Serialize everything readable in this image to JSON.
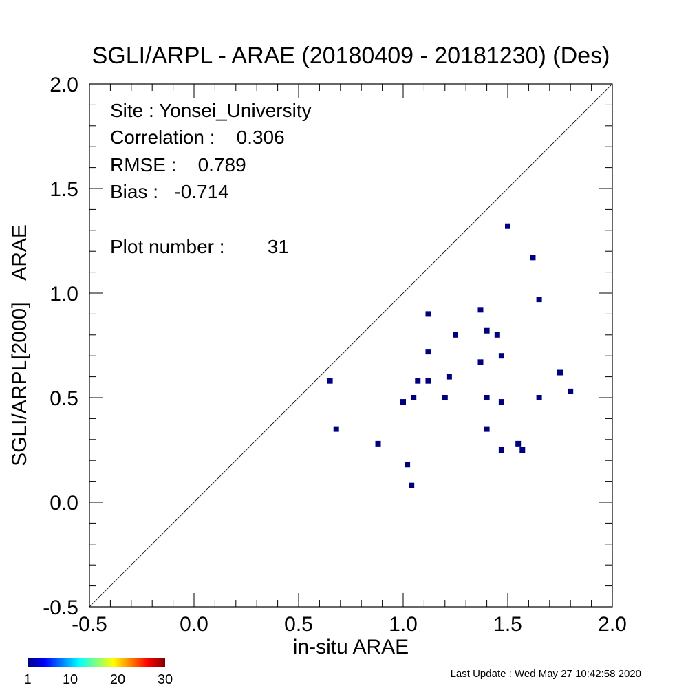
{
  "chart_data": {
    "type": "scatter",
    "title": "SGLI/ARPL - ARAE (20180409 - 20181230) (Des)",
    "xlabel": "in-situ ARAE",
    "ylabel": "SGLI/ARPL[2000]    ARAE",
    "xlim": [
      -0.5,
      2.0
    ],
    "ylim": [
      -0.5,
      2.0
    ],
    "x_ticks": [
      "-0.5",
      "0.0",
      "0.5",
      "1.0",
      "1.5",
      "2.0"
    ],
    "y_ticks": [
      "-0.5",
      "0.0",
      "0.5",
      "1.0",
      "1.5",
      "2.0"
    ],
    "reference_line": "1:1",
    "marker_color": "#00007f",
    "stats": {
      "site": "Site : Yonsei_University",
      "correlation": "Correlation :    0.306",
      "rmse": "RMSE :    0.789",
      "bias": "Bias :   -0.714",
      "plot_number": "Plot number :        31"
    },
    "points": [
      {
        "x": 0.65,
        "y": 0.58
      },
      {
        "x": 0.68,
        "y": 0.35
      },
      {
        "x": 0.88,
        "y": 0.28
      },
      {
        "x": 1.0,
        "y": 0.48
      },
      {
        "x": 1.02,
        "y": 0.18
      },
      {
        "x": 1.04,
        "y": 0.08
      },
      {
        "x": 1.05,
        "y": 0.5
      },
      {
        "x": 1.07,
        "y": 0.58
      },
      {
        "x": 1.12,
        "y": 0.58
      },
      {
        "x": 1.12,
        "y": 0.72
      },
      {
        "x": 1.12,
        "y": 0.9
      },
      {
        "x": 1.2,
        "y": 0.5
      },
      {
        "x": 1.22,
        "y": 0.6
      },
      {
        "x": 1.25,
        "y": 0.8
      },
      {
        "x": 1.37,
        "y": 0.67
      },
      {
        "x": 1.37,
        "y": 0.92
      },
      {
        "x": 1.4,
        "y": 0.82
      },
      {
        "x": 1.4,
        "y": 0.5
      },
      {
        "x": 1.4,
        "y": 0.35
      },
      {
        "x": 1.45,
        "y": 0.8
      },
      {
        "x": 1.47,
        "y": 0.7
      },
      {
        "x": 1.47,
        "y": 0.48
      },
      {
        "x": 1.47,
        "y": 0.25
      },
      {
        "x": 1.5,
        "y": 1.32
      },
      {
        "x": 1.55,
        "y": 0.28
      },
      {
        "x": 1.57,
        "y": 0.25
      },
      {
        "x": 1.62,
        "y": 1.17
      },
      {
        "x": 1.65,
        "y": 0.97
      },
      {
        "x": 1.65,
        "y": 0.5
      },
      {
        "x": 1.75,
        "y": 0.62
      },
      {
        "x": 1.8,
        "y": 0.53
      }
    ],
    "colorbar": {
      "ticks": [
        "1",
        "10",
        "20",
        "30"
      ],
      "colors": [
        "#00007f",
        "#0000ff",
        "#007fff",
        "#00ffff",
        "#7fff7f",
        "#ffff00",
        "#ff7f00",
        "#ff0000",
        "#7f0000"
      ]
    }
  },
  "footer": {
    "last_update": "Last Update : Wed May 27 10:42:58 2020"
  }
}
